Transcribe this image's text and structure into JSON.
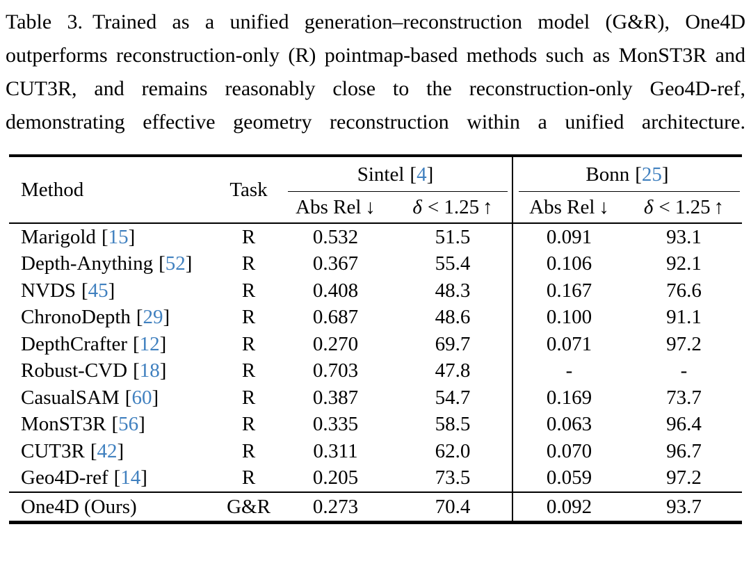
{
  "colors": {
    "citation_blue": "#4080bf",
    "text": "#000000",
    "background": "#ffffff"
  },
  "punct": {
    "open_bracket": "[",
    "close_bracket": "]"
  },
  "caption": {
    "label": "Table 3.",
    "text": "Trained as a unified generation–reconstruction model (G&R), One4D outperforms reconstruction-only (R) pointmap-based methods such as MonST3R and CUT3R, and remains rea­sonably close to the reconstruction-only Geo4D-ref, demonstrat­ing effective geometry reconstruction within a unified architecture."
  },
  "table": {
    "headers": {
      "method": "Method",
      "task": "Task",
      "groups": [
        {
          "name": "Sintel",
          "cite": "4"
        },
        {
          "name": "Bonn",
          "cite": "25"
        }
      ],
      "metric_absrel": "Abs Rel",
      "metric_delta_sym": "δ",
      "metric_delta_rest": "< 1.25",
      "arrow_down": "↓",
      "arrow_up": "↑"
    },
    "rows": [
      {
        "method": "Marigold",
        "cite": "15",
        "task": "R",
        "sintel_absrel": "0.532",
        "sintel_delta": "51.5",
        "bonn_absrel": "0.091",
        "bonn_delta": "93.1"
      },
      {
        "method": "Depth-Anything",
        "cite": "52",
        "task": "R",
        "sintel_absrel": "0.367",
        "sintel_delta": "55.4",
        "bonn_absrel": "0.106",
        "bonn_delta": "92.1"
      },
      {
        "method": "NVDS",
        "cite": "45",
        "task": "R",
        "sintel_absrel": "0.408",
        "sintel_delta": "48.3",
        "bonn_absrel": "0.167",
        "bonn_delta": "76.6"
      },
      {
        "method": "ChronoDepth",
        "cite": "29",
        "task": "R",
        "sintel_absrel": "0.687",
        "sintel_delta": "48.6",
        "bonn_absrel": "0.100",
        "bonn_delta": "91.1"
      },
      {
        "method": "DepthCrafter",
        "cite": "12",
        "task": "R",
        "sintel_absrel": "0.270",
        "sintel_delta": "69.7",
        "bonn_absrel": "0.071",
        "bonn_delta": "97.2"
      },
      {
        "method": "Robust-CVD",
        "cite": "18",
        "task": "R",
        "sintel_absrel": "0.703",
        "sintel_delta": "47.8",
        "bonn_absrel": "-",
        "bonn_delta": "-"
      },
      {
        "method": "CasualSAM",
        "cite": "60",
        "task": "R",
        "sintel_absrel": "0.387",
        "sintel_delta": "54.7",
        "bonn_absrel": "0.169",
        "bonn_delta": "73.7"
      },
      {
        "method": "MonST3R",
        "cite": "56",
        "task": "R",
        "sintel_absrel": "0.335",
        "sintel_delta": "58.5",
        "bonn_absrel": "0.063",
        "bonn_delta": "96.4"
      },
      {
        "method": "CUT3R",
        "cite": "42",
        "task": "R",
        "sintel_absrel": "0.311",
        "sintel_delta": "62.0",
        "bonn_absrel": "0.070",
        "bonn_delta": "96.7"
      },
      {
        "method": "Geo4D-ref",
        "cite": "14",
        "task": "R",
        "sintel_absrel": "0.205",
        "sintel_delta": "73.5",
        "bonn_absrel": "0.059",
        "bonn_delta": "97.2"
      }
    ],
    "final_row": {
      "method": "One4D (Ours)",
      "task": "G&R",
      "sintel_absrel": "0.273",
      "sintel_delta": "70.4",
      "bonn_absrel": "0.092",
      "bonn_delta": "93.7"
    }
  }
}
